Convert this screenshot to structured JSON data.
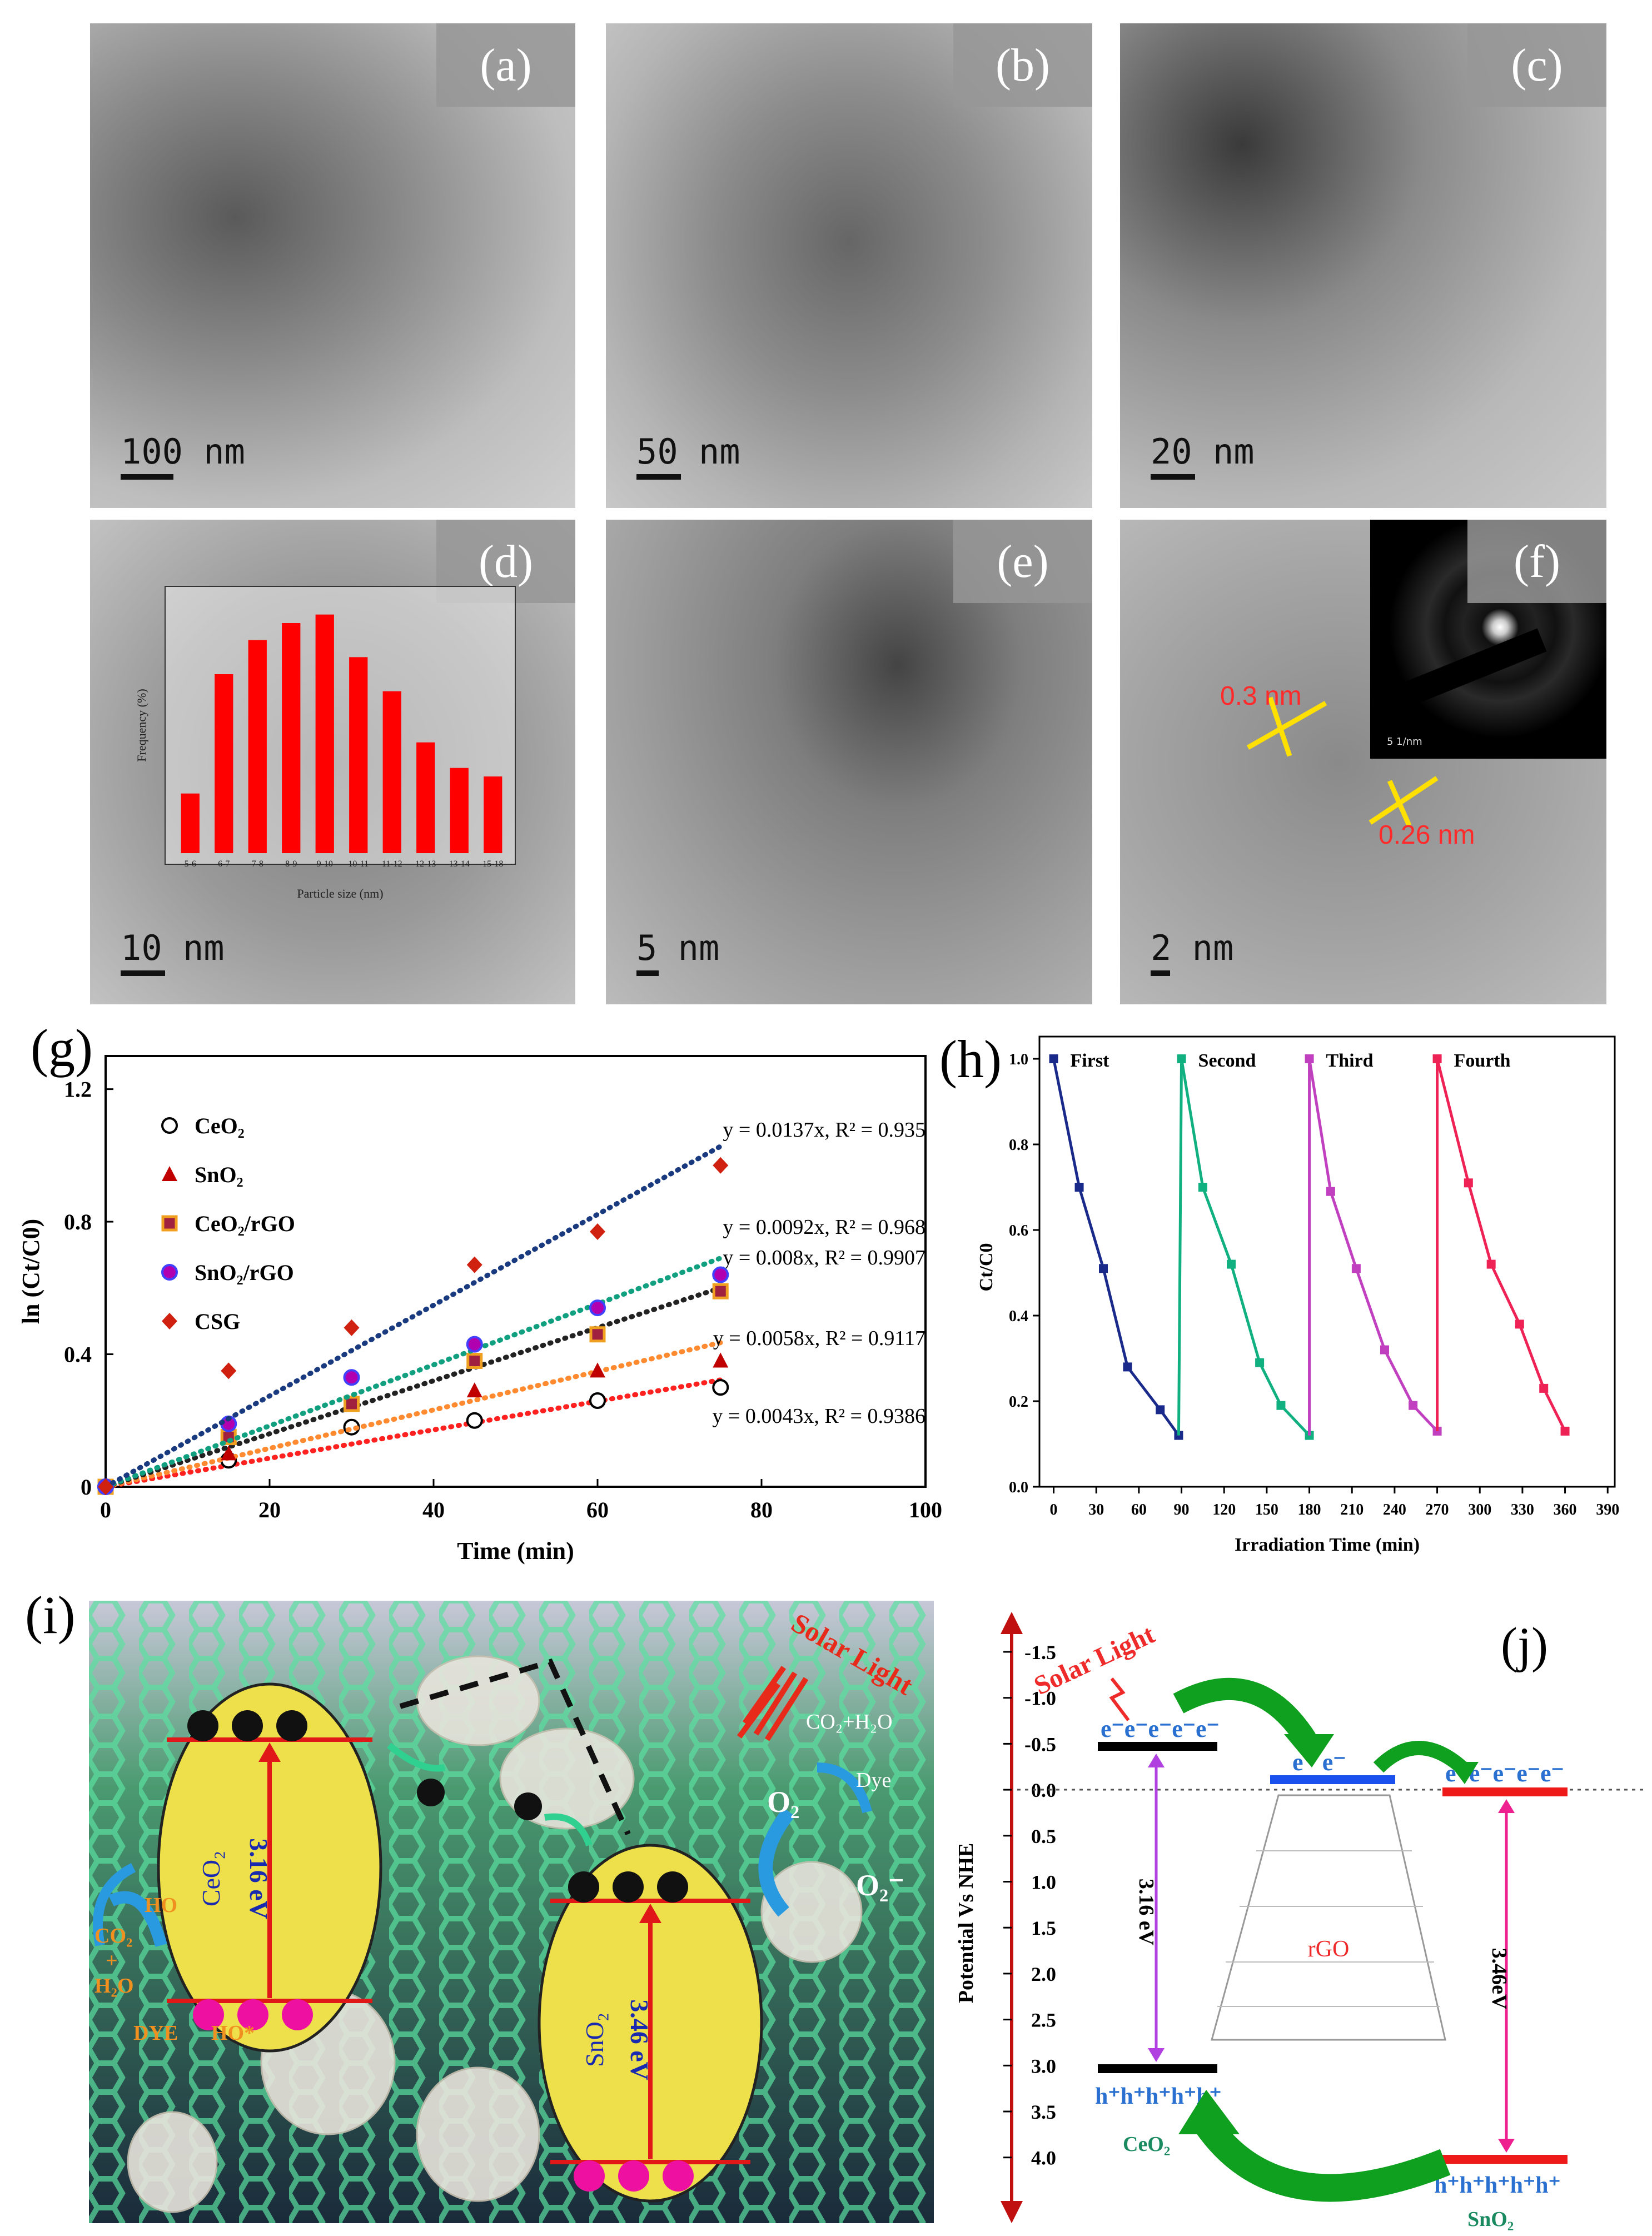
{
  "tem_panels": [
    {
      "label": "(a)",
      "scale": "100 nm"
    },
    {
      "label": "(b)",
      "scale": "50 nm"
    },
    {
      "label": "(c)",
      "scale": "20 nm"
    },
    {
      "label": "(d)",
      "scale": "10 nm"
    },
    {
      "label": "(e)",
      "scale": "5 nm"
    },
    {
      "label": "(f)",
      "scale": "2 nm"
    }
  ],
  "panel_f": {
    "d1": "0.3 nm",
    "d2": "0.26 nm",
    "inset_scale": "5 1/nm"
  },
  "histogram": {
    "ylabel": "Frequency (%)",
    "xlabel": "Particle size (nm)"
  },
  "panel_g": {
    "label": "(g)"
  },
  "panel_h": {
    "label": "(h)"
  },
  "panel_i": {
    "label": "(i)",
    "solar": "Solar Light",
    "ceo2": "CeO₂",
    "ceo2_gap": "3.16 eV",
    "sno2": "SnO₂",
    "sno2_gap": "3.46 eV",
    "o2": "O₂",
    "o2_minus": "O₂⁻",
    "co2h2o": "CO₂+H₂O",
    "dye_right": "Dye",
    "ho": "HO",
    "co2": "CO₂",
    "plus": "+",
    "h2o": "H₂O",
    "dye_left": "DYE",
    "ho_star": "HO*"
  },
  "panel_j": {
    "label": "(j)",
    "solar": "Solar Light",
    "ylabel": "Potential Vs NHE",
    "yticks": [
      "-1.5",
      "-1.0",
      "-0.5",
      "0.0",
      "0.5",
      "1.0",
      "1.5",
      "2.0",
      "2.5",
      "3.0",
      "3.5",
      "4.0"
    ],
    "ceo2": "CeO₂",
    "sno2": "SnO₂",
    "rgo": "rGO",
    "gap1": "3.16 eV",
    "gap2": "3.46eV",
    "electrons5": "e⁻e⁻e⁻e⁻e⁻",
    "electrons2": "e⁻ e⁻",
    "holes": "h⁺h⁺h⁺h⁺h⁺"
  },
  "chart_data": [
    {
      "panel": "(d) inset",
      "type": "bar",
      "xlabel": "Particle size (nm)",
      "ylabel": "Frequency (%)",
      "categories": [
        "5-6",
        "6-7",
        "7-8",
        "8-9",
        "9-10",
        "10-11",
        "11-12",
        "12-13",
        "13-14",
        "15-18"
      ],
      "values": [
        14,
        42,
        50,
        54,
        56,
        46,
        38,
        26,
        20,
        18
      ],
      "ylim": [
        0,
        60
      ],
      "color": "#ff0000"
    },
    {
      "panel": "(g)",
      "type": "scatter",
      "xlabel": "Time (min)",
      "ylabel": "ln (Ct/C0)",
      "xlim": [
        0,
        100
      ],
      "ylim": [
        0,
        1.3
      ],
      "xticks": [
        0,
        20,
        40,
        60,
        80,
        100
      ],
      "yticks": [
        0,
        0.4,
        0.8,
        1.2
      ],
      "legend_position": "top-left",
      "x": [
        0,
        15,
        30,
        45,
        60,
        75
      ],
      "series": [
        {
          "name": "CeO₂",
          "marker": "circle",
          "color": "#000000",
          "values": [
            0,
            0.08,
            0.18,
            0.2,
            0.26,
            0.3
          ],
          "fit": "y = 0.0043x, R² = 0.9386",
          "slope": 0.0043,
          "fit_color": "#ff2020"
        },
        {
          "name": "SnO₂",
          "marker": "triangle",
          "color": "#c00000",
          "values": [
            0,
            0.1,
            0.25,
            0.29,
            0.35,
            0.38
          ],
          "fit": "y = 0.0058x, R² = 0.9117",
          "slope": 0.0058,
          "fit_color": "#ff8a30"
        },
        {
          "name": "CeO₂/rGO",
          "marker": "square",
          "color": "#f0a020",
          "values": [
            0,
            0.15,
            0.25,
            0.38,
            0.46,
            0.59
          ],
          "fit": "y = 0.008x, R² = 0.9907",
          "slope": 0.008,
          "fit_color": "#222222"
        },
        {
          "name": "SnO₂/rGO",
          "marker": "circle-filled",
          "color": "#b000b0",
          "values": [
            0,
            0.19,
            0.33,
            0.43,
            0.54,
            0.64
          ],
          "fit": "y = 0.0092x, R² = 0.968",
          "slope": 0.0092,
          "fit_color": "#10a080"
        },
        {
          "name": "CSG",
          "marker": "diamond",
          "color": "#d02010",
          "values": [
            0,
            0.35,
            0.48,
            0.67,
            0.77,
            0.97
          ],
          "fit": "y = 0.0137x, R² = 0.935",
          "slope": 0.0137,
          "fit_color": "#1a3a80"
        }
      ]
    },
    {
      "panel": "(h)",
      "type": "line",
      "xlabel": "Irradiation Time (min)",
      "ylabel": "Ct/C0",
      "xlim": [
        -10,
        395
      ],
      "ylim": [
        0,
        1.0
      ],
      "xticks": [
        0,
        30,
        60,
        90,
        120,
        150,
        180,
        210,
        240,
        270,
        300,
        330,
        360,
        390
      ],
      "yticks": [
        0.0,
        0.2,
        0.4,
        0.6,
        0.8,
        1.0
      ],
      "series": [
        {
          "name": "First",
          "color": "#1a2a8a",
          "x": [
            0,
            18,
            35,
            52,
            75,
            88
          ],
          "y": [
            1.0,
            0.7,
            0.51,
            0.28,
            0.18,
            0.12
          ]
        },
        {
          "name": "Second",
          "color": "#10b080",
          "x": [
            90,
            105,
            125,
            145,
            160,
            180
          ],
          "y": [
            1.0,
            0.7,
            0.52,
            0.29,
            0.19,
            0.12
          ]
        },
        {
          "name": "Third",
          "color": "#c040c0",
          "x": [
            180,
            195,
            213,
            233,
            253,
            270
          ],
          "y": [
            1.0,
            0.69,
            0.51,
            0.32,
            0.19,
            0.13
          ]
        },
        {
          "name": "Fourth",
          "color": "#ee2255",
          "x": [
            270,
            292,
            308,
            328,
            345,
            360
          ],
          "y": [
            1.0,
            0.71,
            0.52,
            0.38,
            0.23,
            0.13
          ]
        }
      ]
    }
  ]
}
